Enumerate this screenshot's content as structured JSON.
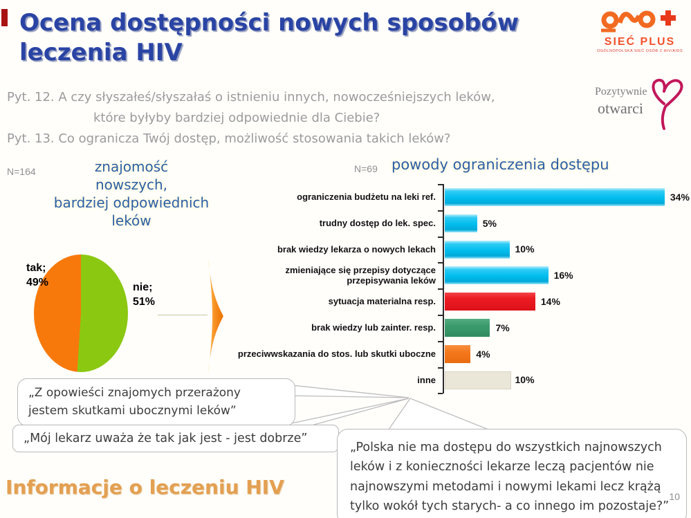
{
  "slide": {
    "title_line1": "Ocena dostępności nowych sposobów",
    "title_line2": "leczenia HIV",
    "questions": {
      "q12_line1": "Pyt. 12. A czy słyszałeś/słyszałaś o istnieniu innych, nowocześniejszych leków,",
      "q12_line2": "które byłyby bardziej odpowiednie dla Ciebie?",
      "q13": "Pyt. 13. Co ogranicza Twój dostęp, możliwość stosowania takich leków?"
    },
    "footer_title": "Informacje o leczeniu HIV",
    "page_number": "10"
  },
  "logos": {
    "siec_plus_name": "SIEĆ PLUS",
    "siec_plus_tagline": "OGÓLNOPOLSKA SIEĆ OSÓB Z HIV/AIDS",
    "pozytywnie_line1": "Pozytywnie",
    "pozytywnie_line2": "otwarci"
  },
  "quotes": [
    {
      "text": "„Z opowieści znajomych przerażony jestem skutkami ubocznymi leków”"
    },
    {
      "text": "„Mój lekarz uważa że tak jak jest - jest dobrze”"
    },
    {
      "text": "„Polska nie ma dostępu do wszystkich najnowszych leków i z konieczności lekarze leczą pacjentów nie najnowszymi metodami i nowymi lekami lecz krążą tylko wokół tych starych- a co innego im pozostaje?”"
    }
  ],
  "chart_data": [
    {
      "type": "pie",
      "n_label": "N=164",
      "title": "znajomość nowszych, bardziej odpowiednich leków",
      "title_lines": [
        "znajomość",
        "nowszych,",
        "bardziej odpowiednich",
        "leków"
      ],
      "labels": [
        "tak",
        "nie"
      ],
      "values": [
        49,
        51
      ],
      "colors": [
        "#F8790B",
        "#8BC812"
      ],
      "point_labels": [
        [
          "tak;",
          "49%"
        ],
        [
          "nie;",
          "51%"
        ]
      ],
      "legend_position": "none"
    },
    {
      "type": "bar",
      "orientation": "horizontal",
      "n_label": "N=69",
      "title": "powody ograniczenia dostępu",
      "categories": [
        "ograniczenia budżetu na leki ref.",
        "trudny dostęp do lek. spec.",
        "brak wiedzy lekarza o nowych lekach",
        "zmieniające się przepisy dotyczące przepisywania leków",
        "sytuacja materialna resp.",
        "brak wiedzy lub zainter. resp.",
        "przeciwwskazania do stos. lub skutki uboczne",
        "inne"
      ],
      "values": [
        34,
        5,
        10,
        16,
        14,
        7,
        4,
        10
      ],
      "value_labels": [
        "34%",
        "5%",
        "10%",
        "16%",
        "14%",
        "7%",
        "4%",
        "10%"
      ],
      "colors": [
        "#00BDEE",
        "#00BDEE",
        "#00BDEE",
        "#00BDEE",
        "#ED1C24",
        "#3B9B6D",
        "#F4771B",
        "#EAE6D8"
      ],
      "xlim": [
        0,
        36
      ],
      "grid": false,
      "value_label_position": "end"
    }
  ]
}
